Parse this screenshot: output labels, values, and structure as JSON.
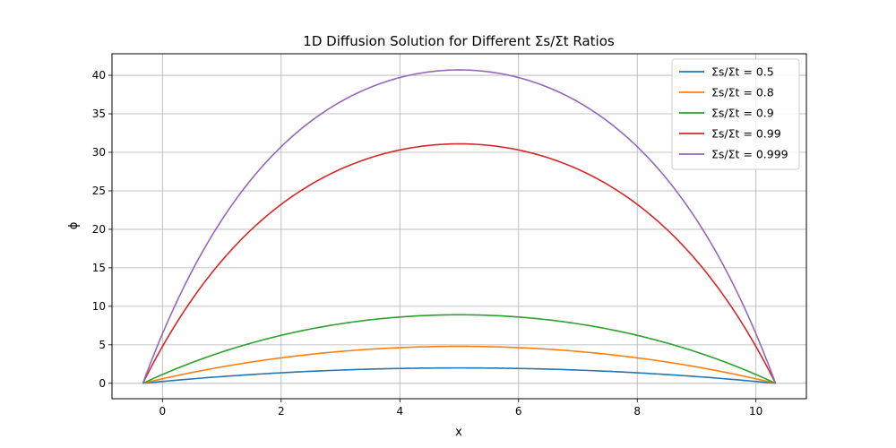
{
  "chart_data": {
    "type": "line",
    "title": "1D Diffusion Solution for Different Σs/Σt Ratios",
    "xlabel": "x",
    "ylabel": "ϕ",
    "xlim": [
      -0.85,
      10.85
    ],
    "ylim": [
      -2.0,
      42.8
    ],
    "xticks": [
      0,
      2,
      4,
      6,
      8,
      10
    ],
    "yticks": [
      0,
      5,
      10,
      15,
      20,
      25,
      30,
      35,
      40
    ],
    "grid": true,
    "legend_position": "top-right",
    "x_domain": [
      -0.33,
      10.33
    ],
    "series": [
      {
        "name": "Σs/Σt = 0.5",
        "color": "#1f77b4",
        "peak": 2.0
      },
      {
        "name": "Σs/Σt = 0.8",
        "color": "#ff7f0e",
        "peak": 4.8
      },
      {
        "name": "Σs/Σt = 0.9",
        "color": "#2ca02c",
        "peak": 8.9
      },
      {
        "name": "Σs/Σt = 0.99",
        "color": "#d62728",
        "peak": 31.1
      },
      {
        "name": "Σs/Σt = 0.999",
        "color": "#9467bd",
        "peak": 40.7
      }
    ]
  }
}
